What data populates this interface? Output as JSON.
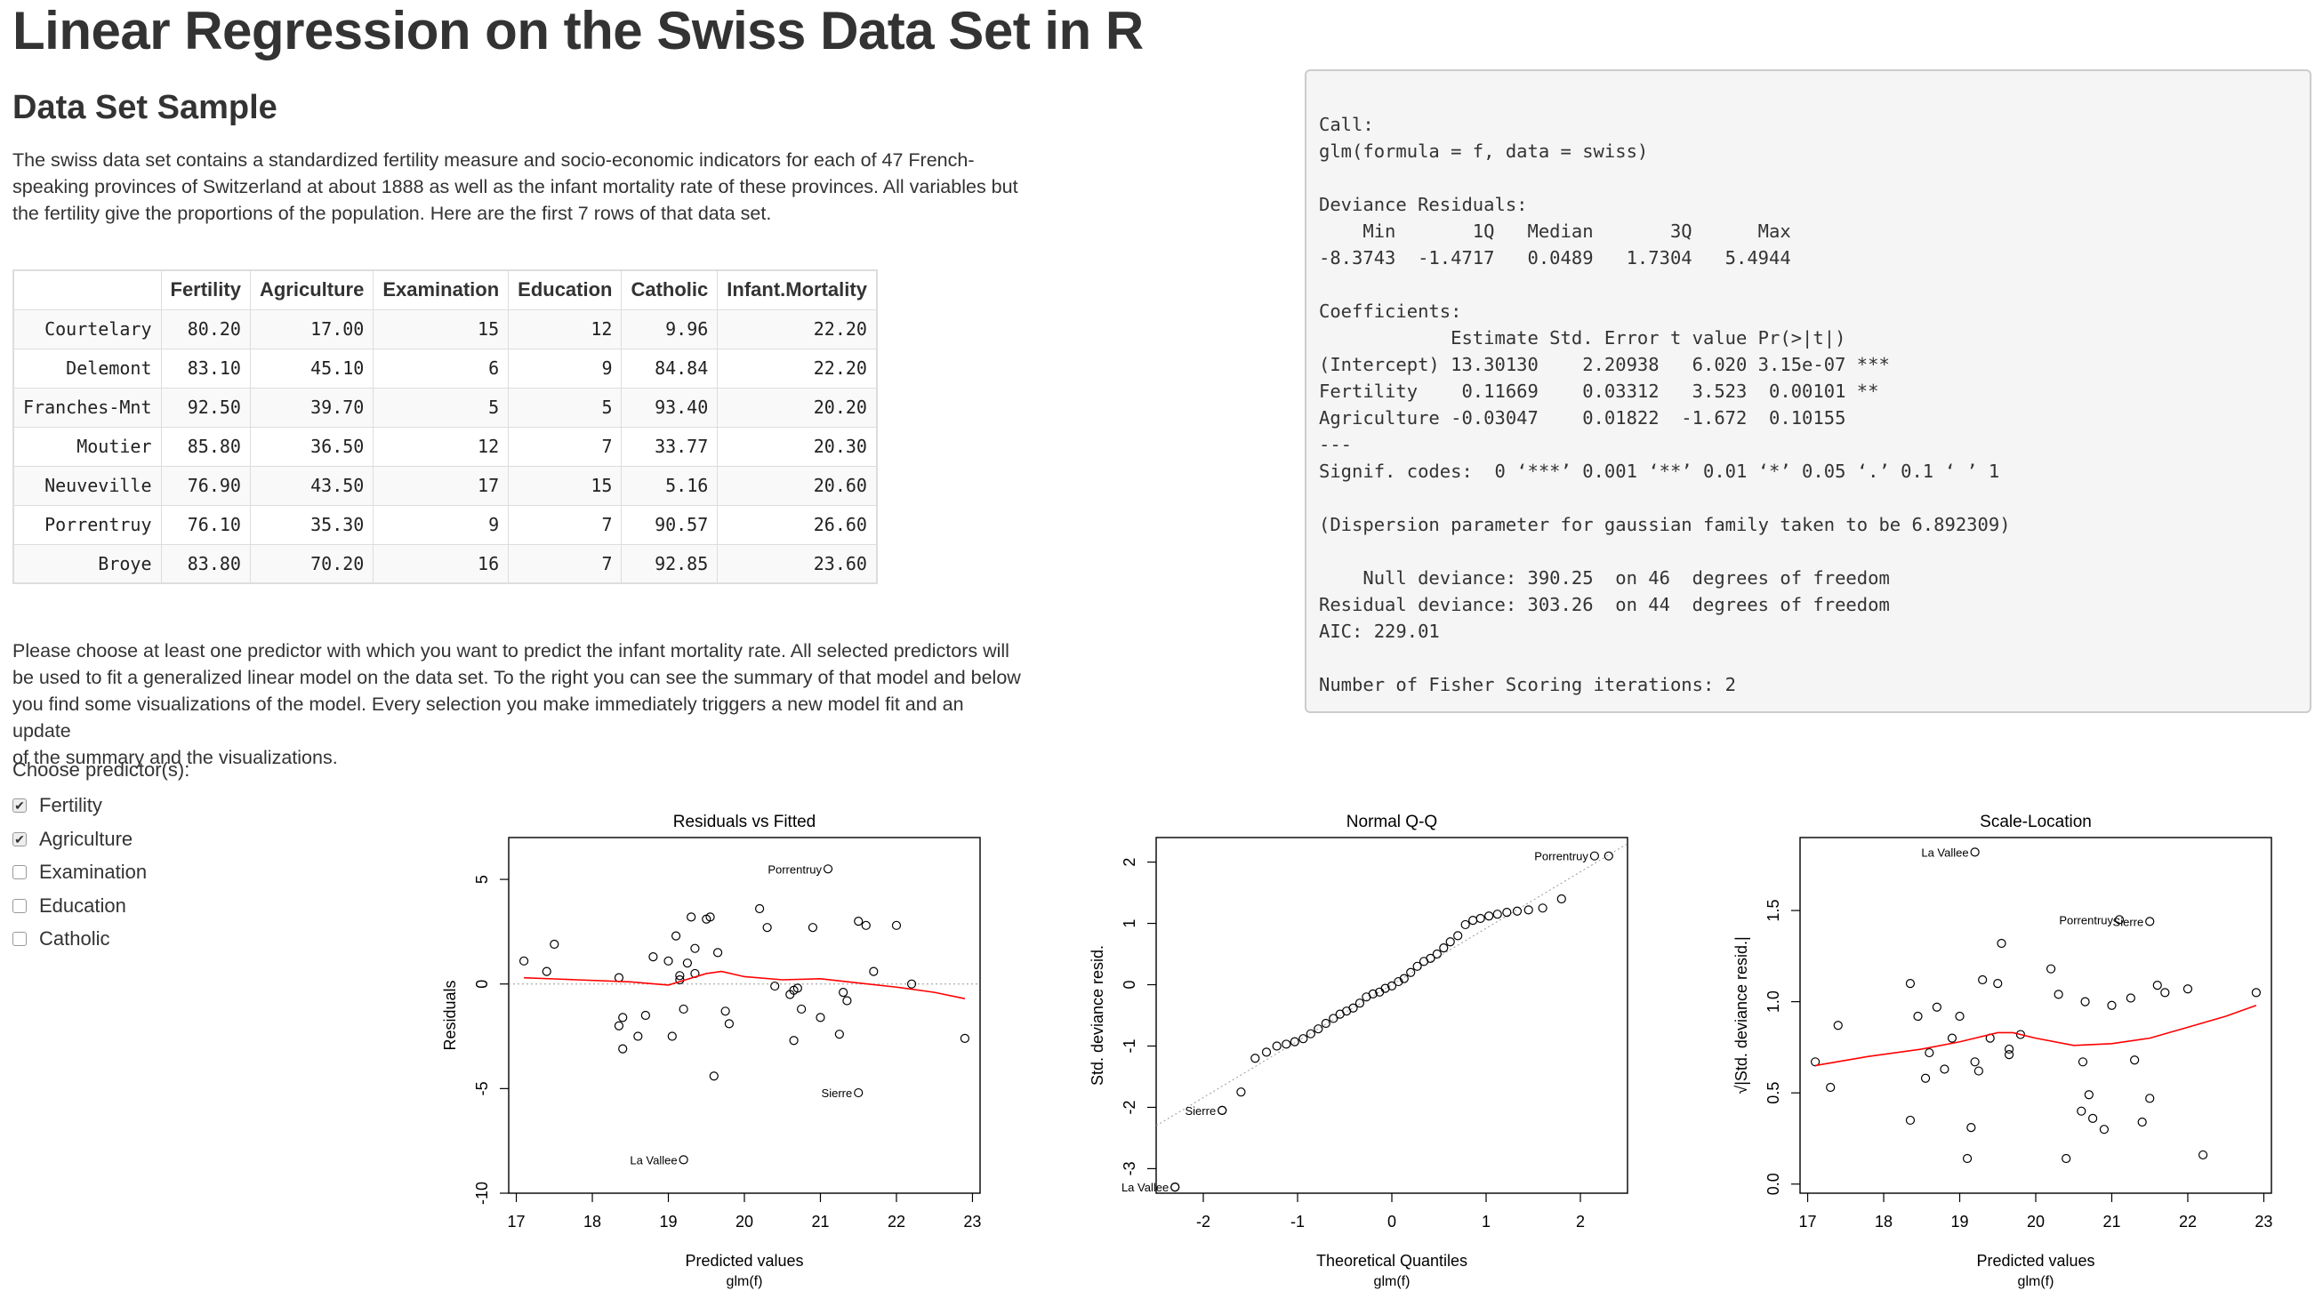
{
  "page": {
    "title": "Linear Regression on the Swiss Data Set in R",
    "section_title": "Data Set Sample",
    "intro_lines": [
      "The swiss data set contains a standardized fertility measure and socio-economic indicators for each of 47 French-",
      "speaking provinces of Switzerland at about 1888 as well as the infant mortality rate of these provinces. All variables but",
      "the fertility give the proportions of the population. Here are the first 7 rows of that data set."
    ],
    "instructions_lines": [
      "Please choose at least one predictor with which you want to predict the infant mortality rate. All selected predictors will",
      "be used to fit a generalized linear model on the data set. To the right you can see the summary of that model and below",
      "you find some visualizations of the model. Every selection you make immediately triggers a new model fit and an update",
      "of the summary and the visualizations."
    ]
  },
  "table": {
    "columns": [
      "",
      "Fertility",
      "Agriculture",
      "Examination",
      "Education",
      "Catholic",
      "Infant.Mortality"
    ],
    "rows": [
      [
        "Courtelary",
        "80.20",
        "17.00",
        "15",
        "12",
        "9.96",
        "22.20"
      ],
      [
        "Delemont",
        "83.10",
        "45.10",
        "6",
        "9",
        "84.84",
        "22.20"
      ],
      [
        "Franches-Mnt",
        "92.50",
        "39.70",
        "5",
        "5",
        "93.40",
        "20.20"
      ],
      [
        "Moutier",
        "85.80",
        "36.50",
        "12",
        "7",
        "33.77",
        "20.30"
      ],
      [
        "Neuveville",
        "76.90",
        "43.50",
        "17",
        "15",
        "5.16",
        "20.60"
      ],
      [
        "Porrentruy",
        "76.10",
        "35.30",
        "9",
        "7",
        "90.57",
        "26.60"
      ],
      [
        "Broye",
        "83.80",
        "70.20",
        "16",
        "7",
        "92.85",
        "23.60"
      ]
    ]
  },
  "predictors": {
    "label": "Choose predictor(s):",
    "options": [
      {
        "label": "Fertility",
        "checked": true
      },
      {
        "label": "Agriculture",
        "checked": true
      },
      {
        "label": "Examination",
        "checked": false
      },
      {
        "label": "Education",
        "checked": false
      },
      {
        "label": "Catholic",
        "checked": false
      }
    ]
  },
  "summary": {
    "lines": [
      "Call:",
      "glm(formula = f, data = swiss)",
      "",
      "Deviance Residuals:",
      "    Min       1Q   Median       3Q      Max",
      "-8.3743  -1.4717   0.0489   1.7304   5.4944",
      "",
      "Coefficients:",
      "            Estimate Std. Error t value Pr(>|t|)",
      "(Intercept) 13.30130    2.20938   6.020 3.15e-07 ***",
      "Fertility    0.11669    0.03312   3.523  0.00101 **",
      "Agriculture -0.03047    0.01822  -1.672  0.10155",
      "---",
      "Signif. codes:  0 ‘***’ 0.001 ‘**’ 0.01 ‘*’ 0.05 ‘.’ 0.1 ‘ ’ 1",
      "",
      "(Dispersion parameter for gaussian family taken to be 6.892309)",
      "",
      "    Null deviance: 390.25  on 46  degrees of freedom",
      "Residual deviance: 303.26  on 44  degrees of freedom",
      "AIC: 229.01",
      "",
      "Number of Fisher Scoring iterations: 2"
    ]
  },
  "chart_data": [
    {
      "type": "scatter",
      "title": "Residuals vs Fitted",
      "xlabel": "Predicted values",
      "xlabel2": "glm(f)",
      "ylabel": "Residuals",
      "xlim": [
        16.9,
        23.1
      ],
      "ylim": [
        -10,
        7
      ],
      "xticks": [
        "17",
        "18",
        "19",
        "20",
        "21",
        "22",
        "23"
      ],
      "yticks": [
        "-10",
        "-5",
        "0",
        "5"
      ],
      "reference_line": 0,
      "smooth_color": "#ff0000",
      "annotations": [
        {
          "label": "Porrentruy",
          "x": 21.1,
          "y": 5.5
        },
        {
          "label": "Sierre",
          "x": 21.5,
          "y": -5.2
        },
        {
          "label": "La Vallee",
          "x": 19.2,
          "y": -8.4
        }
      ],
      "x": [
        17.1,
        17.4,
        17.5,
        18.35,
        18.4,
        18.4,
        18.6,
        18.7,
        18.8,
        19.0,
        19.05,
        19.1,
        19.15,
        19.15,
        19.2,
        19.25,
        19.3,
        19.35,
        19.5,
        19.55,
        19.6,
        19.65,
        19.75,
        19.8,
        20.2,
        20.3,
        20.4,
        20.6,
        20.65,
        20.65,
        20.7,
        20.9,
        21.0,
        21.25,
        21.3,
        21.5,
        21.6,
        21.7,
        22.0,
        22.2,
        22.9,
        19.35,
        18.35,
        20.75,
        21.35
      ],
      "y": [
        1.1,
        0.6,
        1.9,
        0.3,
        -1.6,
        -3.1,
        -2.5,
        -1.5,
        1.3,
        1.1,
        -2.5,
        2.3,
        0.2,
        0.4,
        -1.2,
        1.0,
        3.2,
        1.7,
        3.1,
        3.2,
        -4.4,
        1.5,
        -1.3,
        -1.9,
        3.6,
        2.7,
        -0.1,
        -0.5,
        -0.3,
        -2.7,
        -0.2,
        2.7,
        -1.6,
        -2.4,
        -0.4,
        3.0,
        2.8,
        0.6,
        2.8,
        0.0,
        -2.6,
        0.5,
        -2.0,
        -1.2,
        -0.8
      ],
      "smooth_x": [
        17.1,
        17.8,
        18.5,
        19.0,
        19.5,
        19.7,
        20.0,
        20.5,
        21.0,
        21.5,
        22.0,
        22.5,
        22.9
      ],
      "smooth_y": [
        0.3,
        0.2,
        0.1,
        -0.05,
        0.5,
        0.6,
        0.35,
        0.2,
        0.25,
        0.05,
        -0.15,
        -0.4,
        -0.7
      ]
    },
    {
      "type": "scatter",
      "title": "Normal Q-Q",
      "xlabel": "Theoretical Quantiles",
      "xlabel2": "glm(f)",
      "ylabel": "Std. deviance resid.",
      "xlim": [
        -2.5,
        2.5
      ],
      "ylim": [
        -3.4,
        2.4
      ],
      "xticks": [
        "-2",
        "-1",
        "0",
        "1",
        "2"
      ],
      "yticks": [
        "-3",
        "-2",
        "-1",
        "0",
        "1",
        "2"
      ],
      "reference_line_points": [
        [
          -2.5,
          -2.3
        ],
        [
          2.5,
          2.3
        ]
      ],
      "annotations": [
        {
          "label": "Porrentruy",
          "x": 2.15,
          "y": 2.1
        },
        {
          "label": "Sierre",
          "x": -1.8,
          "y": -2.05
        },
        {
          "label": "La Vallee",
          "x": -2.3,
          "y": -3.3
        }
      ],
      "x": [
        -2.3,
        -1.8,
        -1.6,
        -1.45,
        -1.33,
        -1.22,
        -1.12,
        -1.03,
        -0.94,
        -0.86,
        -0.78,
        -0.7,
        -0.62,
        -0.55,
        -0.48,
        -0.41,
        -0.34,
        -0.27,
        -0.2,
        -0.13,
        -0.07,
        0.0,
        0.07,
        0.13,
        0.2,
        0.27,
        0.34,
        0.41,
        0.48,
        0.55,
        0.62,
        0.7,
        0.78,
        0.86,
        0.94,
        1.03,
        1.12,
        1.22,
        1.33,
        1.45,
        1.6,
        1.8,
        2.3
      ],
      "y": [
        -3.3,
        -2.05,
        -1.75,
        -1.2,
        -1.1,
        -1.0,
        -0.97,
        -0.93,
        -0.88,
        -0.8,
        -0.72,
        -0.63,
        -0.55,
        -0.48,
        -0.43,
        -0.38,
        -0.3,
        -0.2,
        -0.15,
        -0.12,
        -0.06,
        -0.02,
        0.05,
        0.1,
        0.2,
        0.3,
        0.38,
        0.43,
        0.5,
        0.6,
        0.7,
        0.8,
        0.98,
        1.05,
        1.08,
        1.12,
        1.15,
        1.18,
        1.2,
        1.22,
        1.25,
        1.4,
        2.1
      ]
    },
    {
      "type": "scatter",
      "title": "Scale-Location",
      "xlabel": "Predicted values",
      "xlabel2": "glm(f)",
      "ylabel": "√|Std. deviance resid.|",
      "xlim": [
        16.9,
        23.1
      ],
      "ylim": [
        -0.05,
        1.9
      ],
      "xticks": [
        "17",
        "18",
        "19",
        "20",
        "21",
        "22",
        "23"
      ],
      "yticks": [
        "0.0",
        "0.5",
        "1.0",
        "1.5"
      ],
      "smooth_color": "#ff0000",
      "annotations": [
        {
          "label": "La Vallee",
          "x": 19.2,
          "y": 1.82
        },
        {
          "label": "Porrentruy",
          "x": 21.1,
          "y": 1.45
        },
        {
          "label": "Sierre",
          "x": 21.5,
          "y": 1.44
        }
      ],
      "x": [
        17.1,
        17.3,
        17.4,
        18.35,
        18.35,
        18.45,
        18.55,
        18.6,
        18.7,
        18.8,
        18.9,
        19.0,
        19.1,
        19.15,
        19.2,
        19.25,
        19.3,
        19.4,
        19.5,
        19.55,
        19.65,
        19.65,
        19.8,
        20.2,
        20.3,
        20.4,
        20.6,
        20.62,
        20.65,
        20.7,
        20.75,
        20.9,
        21.0,
        21.25,
        21.3,
        21.4,
        21.6,
        21.7,
        22.0,
        22.2,
        22.9,
        21.5
      ],
      "y": [
        0.67,
        0.53,
        0.87,
        1.1,
        0.35,
        0.92,
        0.58,
        0.72,
        0.97,
        0.63,
        0.8,
        0.92,
        0.14,
        0.31,
        0.67,
        0.62,
        1.12,
        0.8,
        1.1,
        1.32,
        0.74,
        0.71,
        0.82,
        1.18,
        1.04,
        0.14,
        0.4,
        0.67,
        1.0,
        0.49,
        0.36,
        0.3,
        0.98,
        1.02,
        0.68,
        0.34,
        1.09,
        1.05,
        1.07,
        0.16,
        1.05,
        0.47
      ],
      "smooth_x": [
        17.1,
        17.8,
        18.5,
        19.0,
        19.5,
        19.7,
        20.0,
        20.5,
        21.0,
        21.5,
        22.0,
        22.5,
        22.9
      ],
      "smooth_y": [
        0.65,
        0.7,
        0.74,
        0.78,
        0.83,
        0.83,
        0.8,
        0.76,
        0.77,
        0.8,
        0.86,
        0.92,
        0.98
      ]
    }
  ]
}
